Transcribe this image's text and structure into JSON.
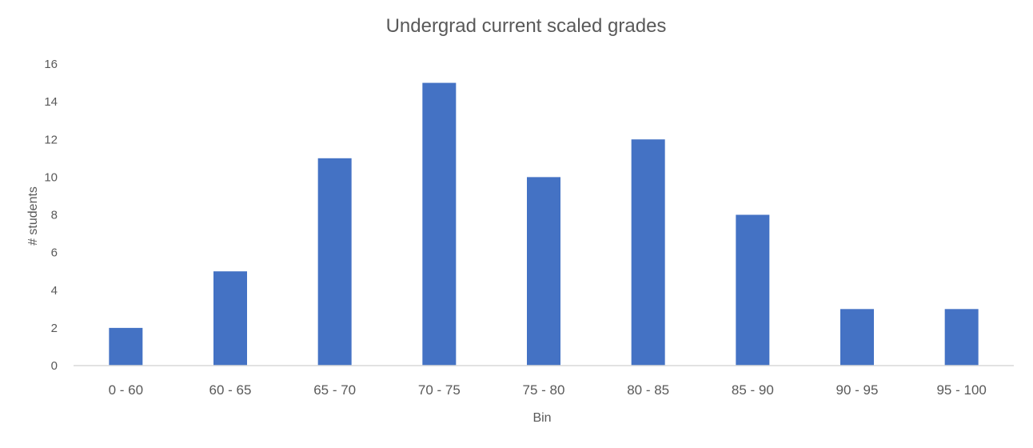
{
  "chart_data": {
    "type": "bar",
    "title": "Undergrad current scaled grades",
    "xlabel": "Bin",
    "ylabel": "# students",
    "categories": [
      "0 - 60",
      "60 - 65",
      "65 - 70",
      "70 - 75",
      "75 - 80",
      "80 - 85",
      "85 - 90",
      "90 - 95",
      "95 - 100"
    ],
    "values": [
      2,
      5,
      11,
      15,
      10,
      12,
      8,
      3,
      3
    ],
    "ylim": [
      0,
      16
    ],
    "yticks": [
      0,
      2,
      4,
      6,
      8,
      10,
      12,
      14,
      16
    ],
    "grid": false,
    "legend": "none",
    "colors": {
      "bar": "#4472C4",
      "axis": "#D9D9D9",
      "text": "#595959"
    }
  }
}
